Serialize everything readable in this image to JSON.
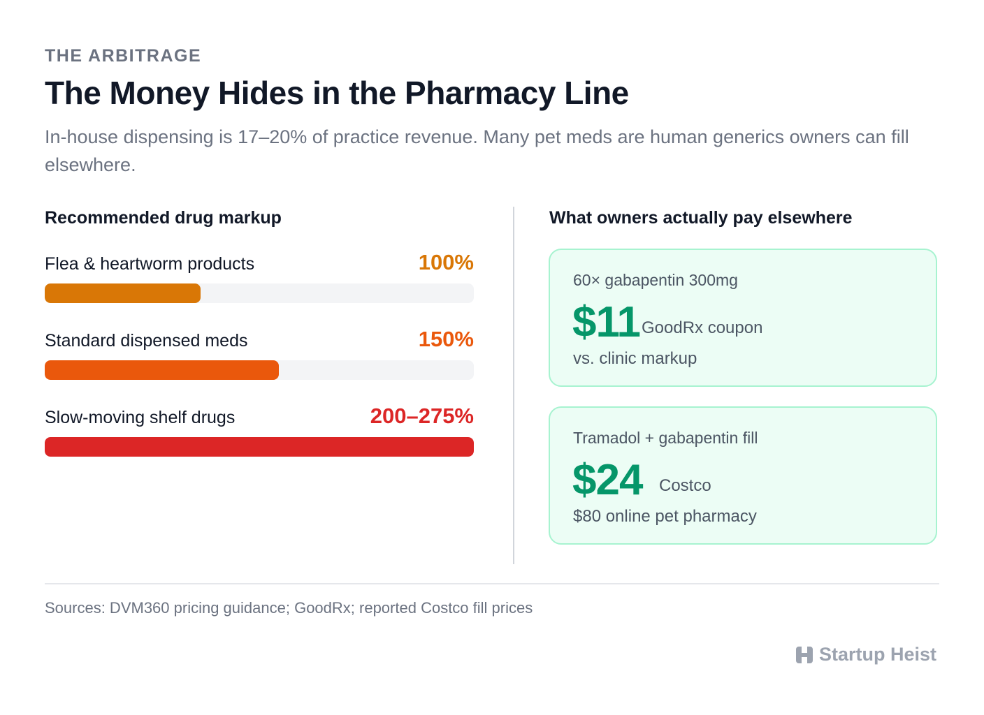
{
  "header": {
    "eyebrow": "THE ARBITRAGE",
    "title": "The Money Hides in the Pharmacy Line",
    "subtitle": "In-house dispensing is 17–20% of practice revenue. Many pet meds are human generics owners can fill elsewhere."
  },
  "left_section": {
    "heading": "Recommended drug markup"
  },
  "right_section": {
    "heading": "What owners actually pay elsewhere"
  },
  "chart_data": {
    "type": "bar",
    "orientation": "horizontal",
    "title": "Recommended drug markup",
    "categories": [
      "Flea & heartworm products",
      "Standard dispensed meds",
      "Slow-moving shelf drugs"
    ],
    "value_labels": [
      "100%",
      "150%",
      "200–275%"
    ],
    "values": [
      100,
      150,
      275
    ],
    "value_ranges": [
      [
        100,
        100
      ],
      [
        150,
        150
      ],
      [
        200,
        275
      ]
    ],
    "xlim": [
      0,
      275
    ],
    "colors": [
      "#d97706",
      "#ea580c",
      "#dc2626"
    ],
    "grid": false
  },
  "cards": [
    {
      "label": "60× gabapentin 300mg",
      "price": "$11",
      "source": "GoodRx coupon",
      "compare": "vs. clinic markup"
    },
    {
      "label": "Tramadol + gabapentin fill",
      "price": "$24",
      "source": "Costco",
      "compare": "$80 online pet pharmacy"
    }
  ],
  "footer": {
    "sources": "Sources: DVM360 pricing guidance; GoodRx; reported Costco fill prices",
    "brand": "Startup Heist",
    "brand_icon": "building-logo-icon"
  },
  "colors": {
    "accent_green": "#059669",
    "card_bg": "#ecfdf5",
    "card_border": "#a7f3d0"
  }
}
